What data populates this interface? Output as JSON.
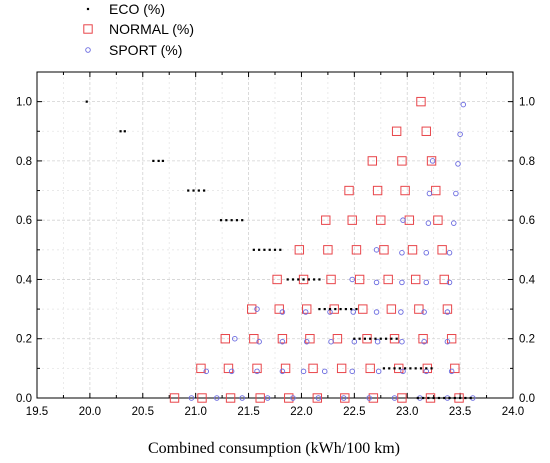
{
  "chart_data": {
    "type": "scatter",
    "xlabel": "Combined consumption (kWh/100 km)",
    "ylabel": "",
    "xlim": [
      19.5,
      24.0
    ],
    "ylim": [
      0.0,
      1.1
    ],
    "xticks": [
      "19.5",
      "20.0",
      "20.5",
      "21.0",
      "21.5",
      "22.0",
      "22.5",
      "23.0",
      "23.5",
      "24.0"
    ],
    "yticks": [
      "0.0",
      "0.2",
      "0.4",
      "0.6",
      "0.8",
      "1.0"
    ],
    "grid": true,
    "legend_position": "top-left",
    "series": [
      {
        "name": "ECO (%)",
        "marker": "dot",
        "color": "#000000",
        "points": [
          [
            19.97,
            1.0
          ],
          [
            20.29,
            0.9
          ],
          [
            20.33,
            0.9
          ],
          [
            20.6,
            0.8
          ],
          [
            20.65,
            0.8
          ],
          [
            20.69,
            0.8
          ],
          [
            20.93,
            0.7
          ],
          [
            20.98,
            0.7
          ],
          [
            21.03,
            0.7
          ],
          [
            21.08,
            0.7
          ],
          [
            21.24,
            0.6
          ],
          [
            21.29,
            0.6
          ],
          [
            21.34,
            0.6
          ],
          [
            21.39,
            0.6
          ],
          [
            21.44,
            0.6
          ],
          [
            21.55,
            0.5
          ],
          [
            21.6,
            0.5
          ],
          [
            21.65,
            0.5
          ],
          [
            21.7,
            0.5
          ],
          [
            21.75,
            0.5
          ],
          [
            21.8,
            0.5
          ],
          [
            21.87,
            0.4
          ],
          [
            21.92,
            0.4
          ],
          [
            21.97,
            0.4
          ],
          [
            22.02,
            0.4
          ],
          [
            22.07,
            0.4
          ],
          [
            22.12,
            0.4
          ],
          [
            22.17,
            0.4
          ],
          [
            22.17,
            0.3
          ],
          [
            22.22,
            0.3
          ],
          [
            22.27,
            0.3
          ],
          [
            22.32,
            0.3
          ],
          [
            22.37,
            0.3
          ],
          [
            22.42,
            0.3
          ],
          [
            22.47,
            0.3
          ],
          [
            22.52,
            0.3
          ],
          [
            22.5,
            0.2
          ],
          [
            22.55,
            0.2
          ],
          [
            22.6,
            0.2
          ],
          [
            22.65,
            0.2
          ],
          [
            22.7,
            0.2
          ],
          [
            22.75,
            0.2
          ],
          [
            22.8,
            0.2
          ],
          [
            22.85,
            0.2
          ],
          [
            22.9,
            0.2
          ],
          [
            22.78,
            0.1
          ],
          [
            22.83,
            0.1
          ],
          [
            22.88,
            0.1
          ],
          [
            22.93,
            0.1
          ],
          [
            22.98,
            0.1
          ],
          [
            23.03,
            0.1
          ],
          [
            23.08,
            0.1
          ],
          [
            23.13,
            0.1
          ],
          [
            23.18,
            0.1
          ],
          [
            23.23,
            0.1
          ],
          [
            23.1,
            0.0
          ],
          [
            23.15,
            0.0
          ],
          [
            23.2,
            0.0
          ],
          [
            23.25,
            0.0
          ],
          [
            23.3,
            0.0
          ],
          [
            23.35,
            0.0
          ],
          [
            23.4,
            0.0
          ],
          [
            23.45,
            0.0
          ],
          [
            23.5,
            0.0
          ],
          [
            23.55,
            0.0
          ],
          [
            23.6,
            0.0
          ]
        ]
      },
      {
        "name": "NORMAL (%)",
        "marker": "square",
        "color": "#e8454a",
        "points": [
          [
            23.13,
            1.0
          ],
          [
            22.9,
            0.9
          ],
          [
            23.18,
            0.9
          ],
          [
            22.67,
            0.8
          ],
          [
            22.95,
            0.8
          ],
          [
            23.23,
            0.8
          ],
          [
            22.45,
            0.7
          ],
          [
            22.72,
            0.7
          ],
          [
            22.98,
            0.7
          ],
          [
            23.27,
            0.7
          ],
          [
            22.23,
            0.6
          ],
          [
            22.48,
            0.6
          ],
          [
            22.75,
            0.6
          ],
          [
            23.02,
            0.6
          ],
          [
            23.29,
            0.6
          ],
          [
            21.98,
            0.5
          ],
          [
            22.25,
            0.5
          ],
          [
            22.52,
            0.5
          ],
          [
            22.78,
            0.5
          ],
          [
            23.05,
            0.5
          ],
          [
            23.33,
            0.5
          ],
          [
            21.77,
            0.4
          ],
          [
            22.02,
            0.4
          ],
          [
            22.28,
            0.4
          ],
          [
            22.55,
            0.4
          ],
          [
            22.82,
            0.4
          ],
          [
            23.08,
            0.4
          ],
          [
            23.35,
            0.4
          ],
          [
            21.53,
            0.3
          ],
          [
            21.79,
            0.3
          ],
          [
            22.05,
            0.3
          ],
          [
            22.31,
            0.3
          ],
          [
            22.58,
            0.3
          ],
          [
            22.85,
            0.3
          ],
          [
            23.11,
            0.3
          ],
          [
            23.38,
            0.3
          ],
          [
            21.28,
            0.2
          ],
          [
            21.55,
            0.2
          ],
          [
            21.82,
            0.2
          ],
          [
            22.08,
            0.2
          ],
          [
            22.34,
            0.2
          ],
          [
            22.62,
            0.2
          ],
          [
            22.88,
            0.2
          ],
          [
            23.15,
            0.2
          ],
          [
            23.42,
            0.2
          ],
          [
            21.05,
            0.1
          ],
          [
            21.31,
            0.1
          ],
          [
            21.58,
            0.1
          ],
          [
            21.85,
            0.1
          ],
          [
            22.11,
            0.1
          ],
          [
            22.38,
            0.1
          ],
          [
            22.65,
            0.1
          ],
          [
            22.92,
            0.1
          ],
          [
            23.19,
            0.1
          ],
          [
            23.45,
            0.1
          ],
          [
            20.8,
            0.0
          ],
          [
            21.06,
            0.0
          ],
          [
            21.33,
            0.0
          ],
          [
            21.61,
            0.0
          ],
          [
            21.88,
            0.0
          ],
          [
            22.15,
            0.0
          ],
          [
            22.41,
            0.0
          ],
          [
            22.68,
            0.0
          ],
          [
            22.95,
            0.0
          ],
          [
            23.22,
            0.0
          ],
          [
            23.49,
            0.0
          ]
        ]
      },
      {
        "name": "SPORT (%)",
        "marker": "circle",
        "color": "#6a6ae0",
        "points": [
          [
            23.53,
            0.99
          ],
          [
            23.5,
            0.89
          ],
          [
            23.24,
            0.8
          ],
          [
            23.48,
            0.79
          ],
          [
            23.21,
            0.69
          ],
          [
            23.46,
            0.69
          ],
          [
            22.96,
            0.6
          ],
          [
            23.2,
            0.59
          ],
          [
            23.44,
            0.59
          ],
          [
            22.71,
            0.5
          ],
          [
            22.95,
            0.49
          ],
          [
            23.18,
            0.49
          ],
          [
            23.4,
            0.49
          ],
          [
            22.48,
            0.4
          ],
          [
            22.71,
            0.39
          ],
          [
            22.95,
            0.39
          ],
          [
            23.18,
            0.39
          ],
          [
            23.4,
            0.39
          ],
          [
            21.58,
            0.3
          ],
          [
            21.82,
            0.29
          ],
          [
            22.04,
            0.29
          ],
          [
            22.27,
            0.29
          ],
          [
            22.49,
            0.29
          ],
          [
            22.71,
            0.29
          ],
          [
            22.94,
            0.29
          ],
          [
            23.16,
            0.29
          ],
          [
            23.38,
            0.29
          ],
          [
            21.37,
            0.2
          ],
          [
            21.6,
            0.19
          ],
          [
            21.82,
            0.19
          ],
          [
            22.05,
            0.19
          ],
          [
            22.28,
            0.19
          ],
          [
            22.5,
            0.19
          ],
          [
            22.72,
            0.19
          ],
          [
            22.95,
            0.19
          ],
          [
            23.16,
            0.19
          ],
          [
            23.38,
            0.19
          ],
          [
            21.1,
            0.09
          ],
          [
            21.34,
            0.09
          ],
          [
            21.58,
            0.09
          ],
          [
            21.82,
            0.09
          ],
          [
            22.02,
            0.09
          ],
          [
            22.22,
            0.09
          ],
          [
            22.48,
            0.09
          ],
          [
            22.73,
            0.09
          ],
          [
            22.96,
            0.09
          ],
          [
            23.18,
            0.09
          ],
          [
            23.42,
            0.09
          ],
          [
            20.96,
            0.0
          ],
          [
            21.2,
            0.0
          ],
          [
            21.44,
            0.0
          ],
          [
            21.68,
            0.0
          ],
          [
            21.92,
            0.0
          ],
          [
            22.16,
            0.0
          ],
          [
            22.4,
            0.0
          ],
          [
            22.64,
            0.0
          ],
          [
            22.88,
            0.0
          ],
          [
            23.12,
            0.0
          ],
          [
            23.38,
            0.0
          ],
          [
            23.62,
            0.0
          ]
        ]
      }
    ]
  }
}
